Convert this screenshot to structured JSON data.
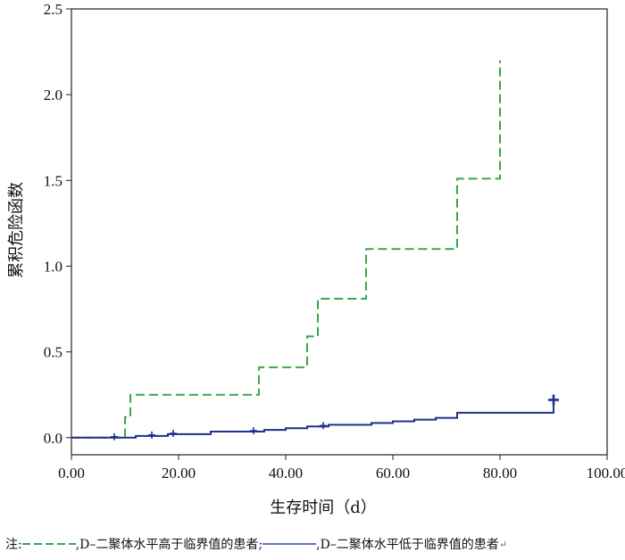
{
  "chart_data": {
    "type": "line",
    "step": true,
    "xlabel": "生存时间（d）",
    "ylabel": "累积危险函数",
    "xlim": [
      0,
      100
    ],
    "ylim": [
      -0.1,
      2.5
    ],
    "x_ticks": [
      "0.00",
      "20.00",
      "40.00",
      "60.00",
      "80.00",
      "100.00"
    ],
    "x_tick_values": [
      0,
      20,
      40,
      60,
      80,
      100
    ],
    "y_ticks": [
      "0.0",
      "0.5",
      "1.0",
      "1.5",
      "2.0",
      "2.5"
    ],
    "y_tick_values": [
      0,
      0.5,
      1.0,
      1.5,
      2.0,
      2.5
    ],
    "grid": false,
    "series": [
      {
        "color": "#3aa64a",
        "dash": "dashed",
        "x": [
          0,
          10,
          11,
          35,
          44,
          46,
          55,
          72,
          80
        ],
        "y": [
          0,
          0.12,
          0.25,
          0.41,
          0.59,
          0.81,
          1.1,
          1.51,
          2.2
        ],
        "censored_x": [],
        "censored_y": []
      },
      {
        "color": "#1f2f8a",
        "dash": "solid",
        "x": [
          0,
          12,
          18,
          26,
          36,
          40,
          44,
          48,
          56,
          60,
          64,
          68,
          72,
          90
        ],
        "y": [
          0,
          0.01,
          0.02,
          0.035,
          0.045,
          0.055,
          0.065,
          0.075,
          0.085,
          0.095,
          0.105,
          0.115,
          0.145,
          0.22
        ],
        "censored_x": [
          8,
          15,
          19,
          34,
          47,
          90
        ],
        "censored_y": [
          0.005,
          0.015,
          0.025,
          0.04,
          0.07,
          0.22
        ]
      }
    ]
  },
  "footnote": {
    "prefix": "注:",
    "entry1": ",D–二聚体水平高于临界值的患者;",
    "entry2": ",D–二聚体水平低于临界值的患者",
    "end_mark": "↵"
  }
}
